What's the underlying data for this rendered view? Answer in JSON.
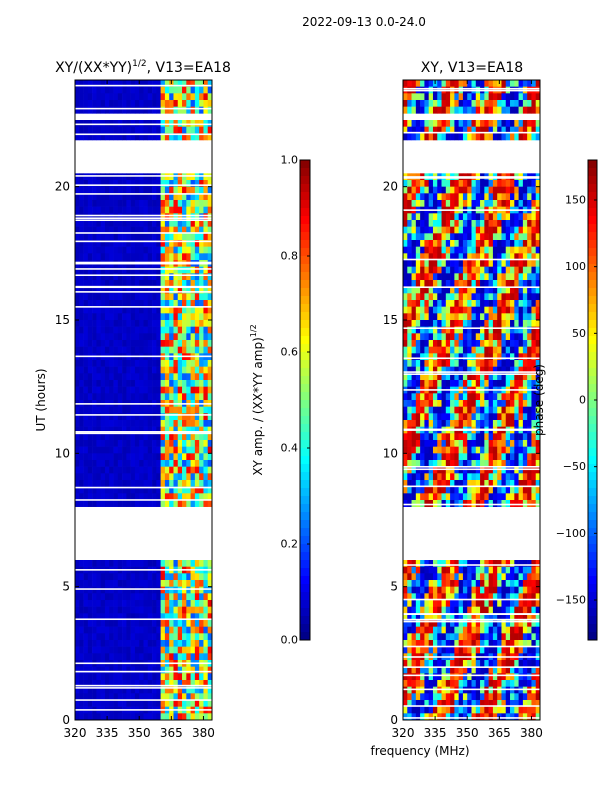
{
  "figure": {
    "suptitle": "2022-09-13 0.0-24.0",
    "shared_xlabel": "frequency (MHz)"
  },
  "chart_data": [
    {
      "type": "heatmap",
      "id": "amp",
      "title_main": "XY/(XX*YY)",
      "title_exp": "1/2",
      "title_tail": ", V13=EA18",
      "ylabel": "UT (hours)",
      "xlabel": "",
      "xlim": [
        320,
        384
      ],
      "ylim": [
        0,
        24
      ],
      "xticks": [
        {
          "v": 320,
          "label": "320"
        },
        {
          "v": 335,
          "label": "335"
        },
        {
          "v": 350,
          "label": "350"
        },
        {
          "v": 365,
          "label": "365"
        },
        {
          "v": 380,
          "label": "380"
        }
      ],
      "yticks": [
        {
          "v": 0,
          "label": "0"
        },
        {
          "v": 5,
          "label": "5"
        },
        {
          "v": 10,
          "label": "10"
        },
        {
          "v": 15,
          "label": "15"
        },
        {
          "v": 20,
          "label": "20"
        }
      ],
      "colormap": "jet",
      "colorbar": {
        "label_main": "XY amp. / (XX*YY amp)",
        "label_exp": "1/2",
        "range": [
          0.0,
          1.0
        ],
        "ticks": [
          {
            "v": 0.0,
            "label": "0.0"
          },
          {
            "v": 0.2,
            "label": "0.2"
          },
          {
            "v": 0.4,
            "label": "0.4"
          },
          {
            "v": 0.6,
            "label": "0.6"
          },
          {
            "v": 0.8,
            "label": "0.8"
          },
          {
            "v": 1.0,
            "label": "1.0"
          }
        ]
      },
      "data_gaps_hours": [
        [
          6.1,
          7.9
        ],
        [
          20.6,
          21.7
        ],
        [
          22.4,
          22.8
        ]
      ],
      "feature_band_mhz": [
        361,
        384
      ],
      "background_value": 0.05
    },
    {
      "type": "heatmap",
      "id": "phase",
      "title_main": "XY, V13=EA18",
      "ylabel": "",
      "xlabel": "",
      "xlim": [
        320,
        384
      ],
      "ylim": [
        0,
        24
      ],
      "xticks": [
        {
          "v": 320,
          "label": "320"
        },
        {
          "v": 335,
          "label": "335"
        },
        {
          "v": 350,
          "label": "350"
        },
        {
          "v": 365,
          "label": "365"
        },
        {
          "v": 380,
          "label": "380"
        }
      ],
      "yticks": [
        {
          "v": 0,
          "label": "0"
        },
        {
          "v": 5,
          "label": "5"
        },
        {
          "v": 10,
          "label": "10"
        },
        {
          "v": 15,
          "label": "15"
        },
        {
          "v": 20,
          "label": "20"
        }
      ],
      "colormap": "jet",
      "colorbar": {
        "label_main": "phase (deg)",
        "range": [
          -180,
          180
        ],
        "ticks": [
          {
            "v": -150,
            "label": "−150"
          },
          {
            "v": -100,
            "label": "−100"
          },
          {
            "v": -50,
            "label": "−50"
          },
          {
            "v": 0,
            "label": "0"
          },
          {
            "v": 50,
            "label": "50"
          },
          {
            "v": 100,
            "label": "100"
          },
          {
            "v": 150,
            "label": "150"
          }
        ]
      },
      "data_gaps_hours": [
        [
          6.1,
          7.9
        ],
        [
          20.6,
          21.7
        ],
        [
          22.4,
          22.8
        ]
      ]
    }
  ]
}
